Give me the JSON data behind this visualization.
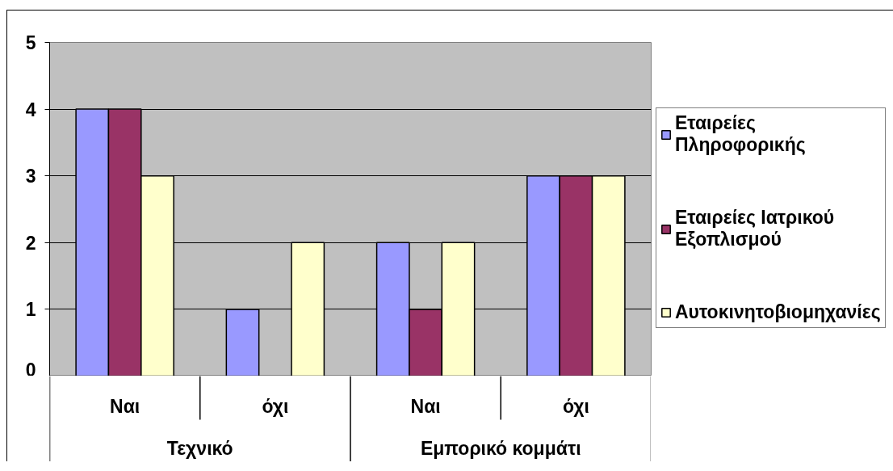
{
  "chart_data": {
    "type": "bar",
    "categories": [
      "Ναι",
      "όχι",
      "Ναι",
      "όχι"
    ],
    "series": [
      {
        "name": "Εταιρείες Πληροφορικής",
        "color": "#9999ff",
        "values": [
          4,
          1,
          2,
          3
        ]
      },
      {
        "name": "Εταιρείες Ιατρικού Εξοπλισμού",
        "color": "#993366",
        "values": [
          4,
          null,
          1,
          3
        ]
      },
      {
        "name": "Αυτοκινητοβιομηχανίες",
        "color": "#ffffcc",
        "values": [
          3,
          2,
          2,
          3
        ]
      }
    ],
    "ylim": [
      0,
      5
    ],
    "yticks": [
      0,
      1,
      2,
      3,
      4,
      5
    ],
    "grid": "y",
    "legend": "right",
    "annotations": [
      "Τεχνικό",
      "Εμπορικό κομμάτι"
    ]
  }
}
